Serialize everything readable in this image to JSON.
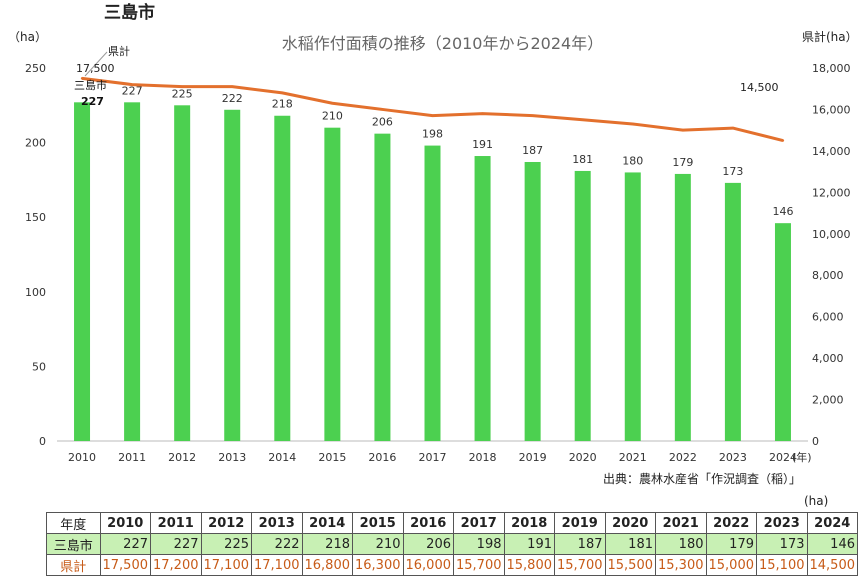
{
  "page": {
    "city_title": "三島市"
  },
  "chart_data": {
    "type": "bar",
    "title": "水稲作付面積の推移（2010年から2024年）",
    "categories": [
      "2010",
      "2011",
      "2012",
      "2013",
      "2014",
      "2015",
      "2016",
      "2017",
      "2018",
      "2019",
      "2020",
      "2021",
      "2022",
      "2023",
      "2024"
    ],
    "x_unit": "(年)",
    "series": [
      {
        "name": "三島市",
        "type": "bar",
        "axis": "left",
        "color": "#4cd050",
        "values": [
          227,
          227,
          225,
          222,
          218,
          210,
          206,
          198,
          191,
          187,
          181,
          180,
          179,
          173,
          146
        ]
      },
      {
        "name": "県計",
        "type": "line",
        "axis": "right",
        "color": "#e3702d",
        "values": [
          17500,
          17200,
          17100,
          17100,
          16800,
          16300,
          16000,
          15700,
          15800,
          15700,
          15500,
          15300,
          15000,
          15100,
          14500
        ]
      }
    ],
    "ylabel": "（ha）",
    "ylabel_right": "県計(ha）",
    "ylim": [
      0,
      250
    ],
    "yticks": [
      "0",
      "50",
      "100",
      "150",
      "200",
      "250"
    ],
    "ylim_right": [
      0,
      18000
    ],
    "yticks_right": [
      "0",
      "2,000",
      "4,000",
      "6,000",
      "8,000",
      "10,000",
      "12,000",
      "14,000",
      "16,000",
      "18,000"
    ],
    "annotations": {
      "city_label": "三島市",
      "city_value": "227",
      "pref_label": "県計",
      "pref_first": "17,500",
      "pref_last": "14,500"
    },
    "grid": false
  },
  "source": "出典：農林水産省「作況調査（稲）」",
  "table": {
    "unit": "(ha)",
    "header_label": "年度",
    "years": [
      "2010",
      "2011",
      "2012",
      "2013",
      "2014",
      "2015",
      "2016",
      "2017",
      "2018",
      "2019",
      "2020",
      "2021",
      "2022",
      "2023",
      "2024"
    ],
    "rows": [
      {
        "label": "三島市",
        "values": [
          "227",
          "227",
          "225",
          "222",
          "218",
          "210",
          "206",
          "198",
          "191",
          "187",
          "181",
          "180",
          "179",
          "173",
          "146"
        ]
      },
      {
        "label": "県計",
        "values": [
          "17,500",
          "17,200",
          "17,100",
          "17,100",
          "16,800",
          "16,300",
          "16,000",
          "15,700",
          "15,800",
          "15,700",
          "15,500",
          "15,300",
          "15,000",
          "15,100",
          "14,500"
        ]
      }
    ]
  }
}
